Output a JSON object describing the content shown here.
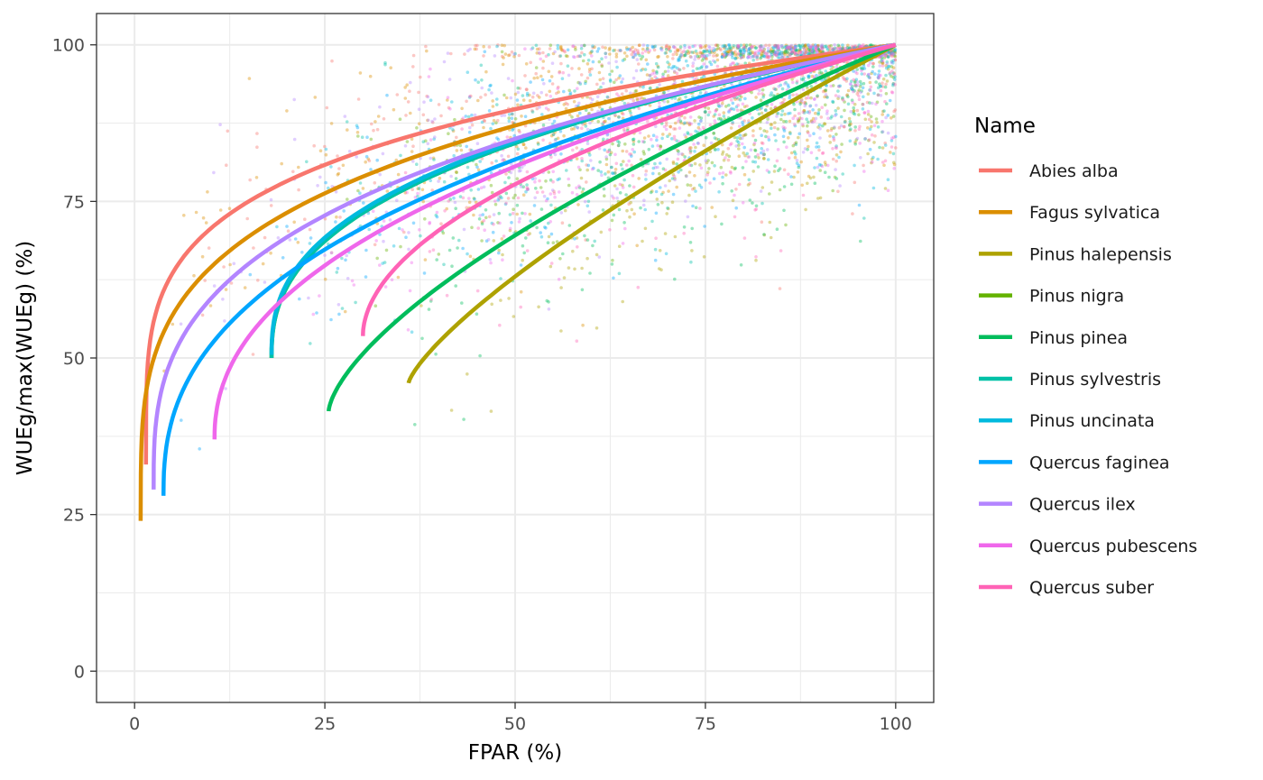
{
  "chart_data": {
    "type": "line",
    "title": "",
    "xlabel": "FPAR (%)",
    "ylabel": "WUEg/max(WUEg) (%)",
    "xlim": [
      -5,
      105
    ],
    "ylim": [
      -5,
      105
    ],
    "x_ticks": [
      0,
      25,
      50,
      75,
      100
    ],
    "y_ticks": [
      0,
      25,
      50,
      75,
      100
    ],
    "x_tick_labels": [
      "0",
      "25",
      "50",
      "75",
      "100"
    ],
    "y_tick_labels": [
      "0",
      "25",
      "50",
      "75",
      "100"
    ],
    "grid": true,
    "legend": {
      "title": "Name",
      "position": "right"
    },
    "series": [
      {
        "name": "Abies alba",
        "color": "#F8766D",
        "x_start": 1.5,
        "y_start": 33,
        "power": 0.235,
        "scatter_count": 420
      },
      {
        "name": "Fagus sylvatica",
        "color": "#DB8E00",
        "x_start": 0.8,
        "y_start": 24,
        "power": 0.265,
        "scatter_count": 520
      },
      {
        "name": "Pinus halepensis",
        "color": "#AEA200",
        "x_start": 36,
        "y_start": 46,
        "power": 0.76,
        "scatter_count": 260
      },
      {
        "name": "Pinus nigra",
        "color": "#64B200",
        "x_start": 18,
        "y_start": 50,
        "power": 0.4,
        "scatter_count": 300
      },
      {
        "name": "Pinus pinea",
        "color": "#00BD5C",
        "x_start": 25.5,
        "y_start": 41.5,
        "power": 0.66,
        "scatter_count": 300
      },
      {
        "name": "Pinus sylvestris",
        "color": "#00C1A7",
        "x_start": 18,
        "y_start": 50,
        "power": 0.4,
        "scatter_count": 320
      },
      {
        "name": "Pinus uncinata",
        "color": "#00BADE",
        "x_start": 18,
        "y_start": 50.5,
        "power": 0.395,
        "scatter_count": 300
      },
      {
        "name": "Quercus faginea",
        "color": "#00A6FF",
        "x_start": 3.8,
        "y_start": 28,
        "power": 0.4,
        "scatter_count": 300
      },
      {
        "name": "Quercus ilex",
        "color": "#B385FF",
        "x_start": 2.5,
        "y_start": 29,
        "power": 0.33,
        "scatter_count": 420
      },
      {
        "name": "Quercus pubescens",
        "color": "#EF67EB",
        "x_start": 10.5,
        "y_start": 37,
        "power": 0.45,
        "scatter_count": 300
      },
      {
        "name": "Quercus suber",
        "color": "#FF63B6",
        "x_start": 30,
        "y_start": 53.5,
        "power": 0.52,
        "scatter_count": 280
      }
    ]
  }
}
